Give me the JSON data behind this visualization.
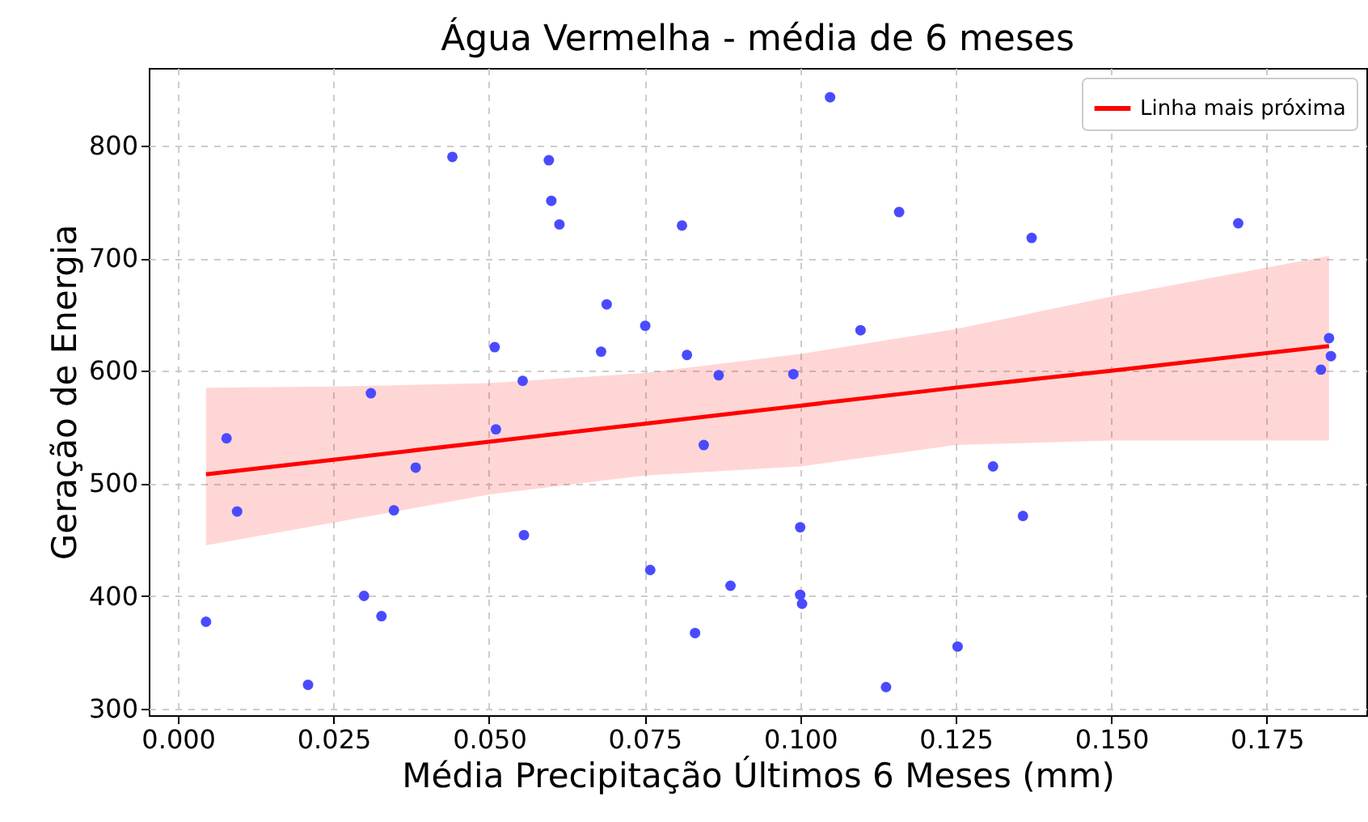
{
  "chart_data": {
    "type": "scatter",
    "title": "Água Vermelha - média de 6 meses",
    "xlabel": "Média Precipitação Últimos 6 Meses (mm)",
    "ylabel": "Geração de Energia",
    "series": [
      {
        "marker": "circle",
        "color": "#4a4aff",
        "x": [
          0.0441,
          0.0596,
          0.06,
          0.0613,
          0.0509,
          0.0554,
          0.031,
          0.0078,
          0.0511,
          0.0382,
          0.0095,
          0.0347,
          0.0556,
          0.0299,
          0.0327,
          0.0045,
          0.0209,
          0.1048,
          0.1159,
          0.081,
          0.0689,
          0.0751,
          0.1097,
          0.068,
          0.0818,
          0.0869,
          0.0989,
          0.0845,
          0.1,
          0.0759,
          0.0888,
          0.1,
          0.1003,
          0.0831,
          0.1253,
          0.1138,
          0.1372,
          0.1704,
          0.185,
          0.1853,
          0.1837,
          0.131,
          0.1358
        ],
        "values": [
          790,
          787,
          751,
          730,
          621,
          591,
          580,
          540,
          548,
          514,
          475,
          476,
          454,
          400,
          382,
          377,
          321,
          843,
          741,
          729,
          659,
          640,
          636,
          617,
          614,
          596,
          597,
          534,
          461,
          423,
          409,
          401,
          393,
          367,
          355,
          319,
          718,
          731,
          629,
          613,
          601,
          515,
          471
        ]
      },
      {
        "type": "line",
        "marker": "none",
        "name": "Linha mais próxima",
        "color": "#ff0000",
        "x": [
          0.0045,
          0.025,
          0.05,
          0.075,
          0.1,
          0.125,
          0.15,
          0.185
        ],
        "values": [
          508,
          521,
          537,
          553,
          569,
          585,
          600,
          622
        ],
        "lower": [
          445,
          465,
          490,
          507,
          515,
          534,
          538,
          538
        ],
        "upper": [
          585,
          586,
          589,
          598,
          615,
          637,
          666,
          702
        ]
      }
    ],
    "xlim": [
      -0.0047,
      0.191
    ],
    "ylim": [
      294,
      869
    ],
    "xticks": [
      {
        "value": 0,
        "label": "0.000"
      },
      0.025,
      {
        "value": 0.05,
        "label": "0.050"
      },
      0.075,
      {
        "value": 0.1,
        "label": "0.100"
      },
      0.125,
      {
        "value": 0.15,
        "label": "0.150"
      },
      0.175
    ],
    "yticks": [
      300,
      400,
      500,
      600,
      700,
      800
    ],
    "grid": true,
    "legend": "top right"
  }
}
